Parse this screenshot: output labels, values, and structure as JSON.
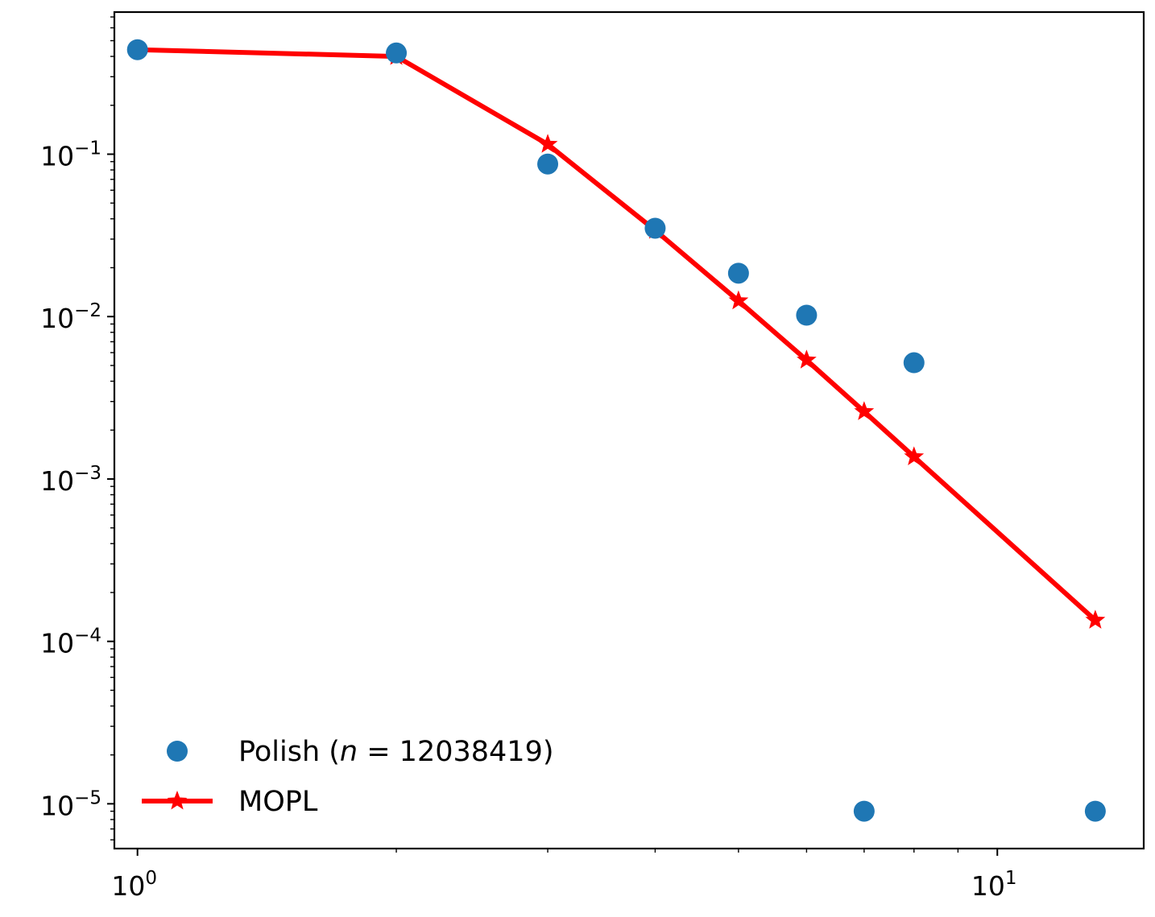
{
  "chart_data": {
    "type": "scatter",
    "xscale": "log",
    "yscale": "log",
    "xlim": [
      0.94,
      14.8
    ],
    "ylim": [
      5.3e-06,
      0.75
    ],
    "x_ticks": [
      {
        "value": 1,
        "base": "10",
        "exp": "0"
      },
      {
        "value": 10,
        "base": "10",
        "exp": "1"
      }
    ],
    "y_ticks": [
      {
        "value": 0.1,
        "base": "10",
        "exp": "−1"
      },
      {
        "value": 0.01,
        "base": "10",
        "exp": "−2"
      },
      {
        "value": 0.001,
        "base": "10",
        "exp": "−3"
      },
      {
        "value": 0.0001,
        "base": "10",
        "exp": "−4"
      },
      {
        "value": 1e-05,
        "base": "10",
        "exp": "−5"
      }
    ],
    "series": [
      {
        "name": "Polish (n = 12038419)",
        "kind": "scatter",
        "color": "#1f77b4",
        "x": [
          1,
          2,
          3,
          4,
          5,
          6,
          7,
          8,
          13
        ],
        "y": [
          0.44,
          0.42,
          0.087,
          0.035,
          0.0185,
          0.0102,
          9e-06,
          0.0052,
          9e-06
        ]
      },
      {
        "name": "MOPL",
        "kind": "line",
        "marker": "star",
        "color": "#ff0000",
        "x": [
          1,
          2,
          3,
          4,
          5,
          6,
          7,
          8,
          13
        ],
        "y": [
          0.44,
          0.4,
          0.115,
          0.034,
          0.0125,
          0.0054,
          0.0026,
          0.00137,
          0.000135
        ]
      }
    ],
    "legend": {
      "placement": "lower-left",
      "entries": [
        {
          "kind": "scatter",
          "color": "#1f77b4",
          "prefix": "Polish (",
          "var": "n",
          "suffix": " = 12038419)"
        },
        {
          "kind": "line",
          "color": "#ff0000",
          "prefix": "MOPL",
          "var": "",
          "suffix": ""
        }
      ]
    },
    "grid": false
  }
}
